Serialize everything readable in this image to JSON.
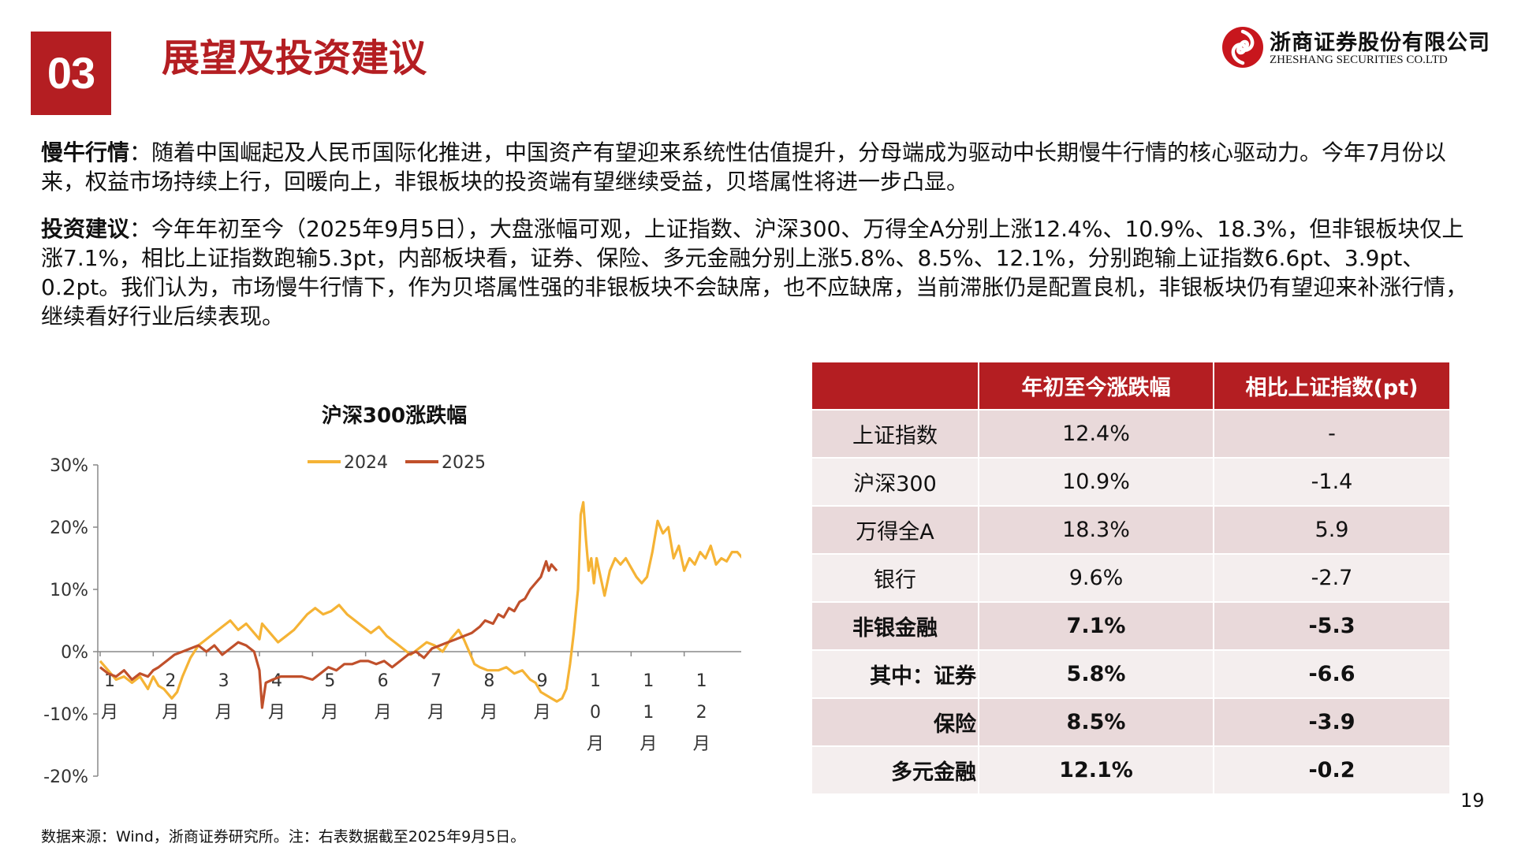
{
  "header": {
    "section_number": "03",
    "section_title": "展望及投资建议",
    "logo_cn": "浙商证券股份有限公司",
    "logo_en": "ZHESHANG SECURITIES CO.LTD",
    "brand_color": "#b41e22"
  },
  "paragraphs": [
    {
      "lead": "慢牛行情",
      "sep": "：",
      "text": "随着中国崛起及人民币国际化推进，中国资产有望迎来系统性估值提升，分母端成为驱动中长期慢牛行情的核心驱动力。今年7月份以来，权益市场持续上行，回暖向上，非银板块的投资端有望继续受益，贝塔属性将进一步凸显。"
    },
    {
      "lead": "投资建议",
      "sep": "：",
      "text": "今年年初至今（2025年9月5日），大盘涨幅可观，上证指数、沪深300、万得全A分别上涨12.4%、10.9%、18.3%，但非银板块仅上涨7.1%，相比上证指数跑输5.3pt，内部板块看，证券、保险、多元金融分别上涨5.8%、8.5%、12.1%，分别跑输上证指数6.6pt、3.9pt、0.2pt。我们认为，市场慢牛行情下，作为贝塔属性强的非银板块不会缺席，也不应缺席，当前滞胀仍是配置良机，非银板块仍有望迎来补涨行情，继续看好行业后续表现。"
    }
  ],
  "chart_data": {
    "type": "line",
    "title": "沪深300涨跌幅",
    "ylim": [
      -20,
      30
    ],
    "yticks": [
      "30%",
      "20%",
      "10%",
      "0%",
      "-10%",
      "-20%"
    ],
    "ytick_values": [
      30,
      20,
      10,
      0,
      -10,
      -20
    ],
    "xticks": [
      {
        "label": "1\n月",
        "at": 0
      },
      {
        "label": "2\n月",
        "at": 1
      },
      {
        "label": "3\n月",
        "at": 2
      },
      {
        "label": "4\n月",
        "at": 3
      },
      {
        "label": "5\n月",
        "at": 4
      },
      {
        "label": "6\n月",
        "at": 5
      },
      {
        "label": "7\n月",
        "at": 6
      },
      {
        "label": "8\n月",
        "at": 7
      },
      {
        "label": "9\n月",
        "at": 8
      },
      {
        "label": "1\n0\n月",
        "at": 9
      },
      {
        "label": "1\n1\n月",
        "at": 10
      },
      {
        "label": "1\n2\n月",
        "at": 11
      }
    ],
    "x_domain": [
      0,
      12
    ],
    "legend_position": "top-center",
    "grid": false,
    "series": [
      {
        "name": "2024",
        "color": "#f5b335",
        "points": [
          [
            0,
            -1.5
          ],
          [
            0.15,
            -3
          ],
          [
            0.3,
            -4.5
          ],
          [
            0.45,
            -4
          ],
          [
            0.6,
            -5
          ],
          [
            0.75,
            -4
          ],
          [
            0.9,
            -6
          ],
          [
            1.0,
            -4
          ],
          [
            1.1,
            -5.5
          ],
          [
            1.2,
            -6
          ],
          [
            1.35,
            -7.5
          ],
          [
            1.45,
            -6.5
          ],
          [
            1.55,
            -4
          ],
          [
            1.7,
            -1
          ],
          [
            1.85,
            1
          ],
          [
            2.0,
            2
          ],
          [
            2.15,
            3
          ],
          [
            2.3,
            4
          ],
          [
            2.45,
            5
          ],
          [
            2.6,
            3.5
          ],
          [
            2.75,
            4.5
          ],
          [
            2.9,
            3
          ],
          [
            3.0,
            2
          ],
          [
            3.05,
            4.5
          ],
          [
            3.2,
            3
          ],
          [
            3.35,
            1.5
          ],
          [
            3.5,
            2.5
          ],
          [
            3.65,
            3.5
          ],
          [
            3.8,
            5
          ],
          [
            3.9,
            6
          ],
          [
            4.05,
            7
          ],
          [
            4.2,
            6
          ],
          [
            4.35,
            6.5
          ],
          [
            4.5,
            7.5
          ],
          [
            4.65,
            6
          ],
          [
            4.8,
            5
          ],
          [
            4.95,
            4
          ],
          [
            5.1,
            3
          ],
          [
            5.25,
            4
          ],
          [
            5.4,
            2.5
          ],
          [
            5.55,
            1.5
          ],
          [
            5.7,
            0.5
          ],
          [
            5.85,
            -0.5
          ],
          [
            6.0,
            0.5
          ],
          [
            6.15,
            1.5
          ],
          [
            6.3,
            1
          ],
          [
            6.45,
            0
          ],
          [
            6.6,
            2
          ],
          [
            6.75,
            3.5
          ],
          [
            6.85,
            2
          ],
          [
            6.95,
            0
          ],
          [
            7.05,
            -2
          ],
          [
            7.15,
            -2.5
          ],
          [
            7.3,
            -3
          ],
          [
            7.5,
            -3
          ],
          [
            7.65,
            -2.5
          ],
          [
            7.8,
            -3.5
          ],
          [
            7.95,
            -3
          ],
          [
            8.1,
            -4.5
          ],
          [
            8.2,
            -5
          ],
          [
            8.3,
            -6.5
          ],
          [
            8.4,
            -7
          ],
          [
            8.5,
            -7.5
          ],
          [
            8.6,
            -8
          ],
          [
            8.7,
            -7.5
          ],
          [
            8.78,
            -6
          ],
          [
            8.85,
            -2
          ],
          [
            8.92,
            3
          ],
          [
            9.0,
            10
          ],
          [
            9.05,
            22
          ],
          [
            9.1,
            24
          ],
          [
            9.15,
            18
          ],
          [
            9.2,
            13
          ],
          [
            9.25,
            15
          ],
          [
            9.3,
            11
          ],
          [
            9.35,
            15
          ],
          [
            9.4,
            13
          ],
          [
            9.5,
            9
          ],
          [
            9.6,
            13
          ],
          [
            9.7,
            15
          ],
          [
            9.8,
            14
          ],
          [
            9.9,
            15
          ],
          [
            10.0,
            13.5
          ],
          [
            10.1,
            12
          ],
          [
            10.2,
            11
          ],
          [
            10.3,
            12
          ],
          [
            10.4,
            16
          ],
          [
            10.5,
            21
          ],
          [
            10.6,
            19
          ],
          [
            10.7,
            20
          ],
          [
            10.8,
            15
          ],
          [
            10.9,
            17
          ],
          [
            11.0,
            13
          ],
          [
            11.1,
            15
          ],
          [
            11.2,
            14
          ],
          [
            11.3,
            16
          ],
          [
            11.4,
            15
          ],
          [
            11.5,
            17
          ],
          [
            11.6,
            14
          ],
          [
            11.7,
            15
          ],
          [
            11.8,
            14.5
          ],
          [
            11.9,
            16
          ],
          [
            12.0,
            16
          ],
          [
            12.1,
            15
          ]
        ]
      },
      {
        "name": "2025",
        "color": "#c0502b",
        "points": [
          [
            0,
            -2.5
          ],
          [
            0.15,
            -3.5
          ],
          [
            0.3,
            -4
          ],
          [
            0.45,
            -3
          ],
          [
            0.6,
            -4.5
          ],
          [
            0.75,
            -3.5
          ],
          [
            0.9,
            -4
          ],
          [
            1.0,
            -3
          ],
          [
            1.1,
            -2.5
          ],
          [
            1.25,
            -1.5
          ],
          [
            1.4,
            -0.5
          ],
          [
            1.55,
            0
          ],
          [
            1.7,
            0.5
          ],
          [
            1.85,
            1
          ],
          [
            2.0,
            0
          ],
          [
            2.15,
            1
          ],
          [
            2.3,
            -0.5
          ],
          [
            2.45,
            0.5
          ],
          [
            2.6,
            1.5
          ],
          [
            2.75,
            1
          ],
          [
            2.9,
            0
          ],
          [
            3.0,
            -3
          ],
          [
            3.05,
            -9
          ],
          [
            3.12,
            -5
          ],
          [
            3.25,
            -4.5
          ],
          [
            3.4,
            -4
          ],
          [
            3.6,
            -4
          ],
          [
            3.8,
            -4
          ],
          [
            4.0,
            -4.5
          ],
          [
            4.15,
            -3.5
          ],
          [
            4.3,
            -2.5
          ],
          [
            4.45,
            -3
          ],
          [
            4.6,
            -2
          ],
          [
            4.75,
            -2
          ],
          [
            4.9,
            -1.5
          ],
          [
            5.05,
            -1.5
          ],
          [
            5.2,
            -2
          ],
          [
            5.35,
            -1.5
          ],
          [
            5.5,
            -2.5
          ],
          [
            5.65,
            -1.5
          ],
          [
            5.8,
            -0.5
          ],
          [
            5.95,
            0
          ],
          [
            6.1,
            -1
          ],
          [
            6.25,
            0.5
          ],
          [
            6.4,
            1
          ],
          [
            6.55,
            1.5
          ],
          [
            6.7,
            2
          ],
          [
            6.85,
            2.5
          ],
          [
            7.0,
            3
          ],
          [
            7.15,
            4
          ],
          [
            7.25,
            5
          ],
          [
            7.4,
            4.5
          ],
          [
            7.5,
            6
          ],
          [
            7.6,
            5.5
          ],
          [
            7.7,
            7
          ],
          [
            7.8,
            6.5
          ],
          [
            7.9,
            8
          ],
          [
            8.0,
            8.5
          ],
          [
            8.1,
            10
          ],
          [
            8.2,
            11
          ],
          [
            8.3,
            12
          ],
          [
            8.4,
            14.5
          ],
          [
            8.45,
            13
          ],
          [
            8.5,
            14
          ],
          [
            8.6,
            13
          ]
        ]
      }
    ]
  },
  "table": {
    "headers": [
      "",
      "年初至今涨跌幅",
      "相比上证指数(pt)"
    ],
    "rows": [
      {
        "name": "上证指数",
        "ytd": "12.4%",
        "vs": "-",
        "bold": false,
        "indent": false
      },
      {
        "name": "沪深300",
        "ytd": "10.9%",
        "vs": "-1.4",
        "bold": false,
        "indent": false
      },
      {
        "name": "万得全A",
        "ytd": "18.3%",
        "vs": "5.9",
        "bold": false,
        "indent": false
      },
      {
        "name": "银行",
        "ytd": "9.6%",
        "vs": "-2.7",
        "bold": false,
        "indent": false
      },
      {
        "name": "非银金融",
        "ytd": "7.1%",
        "vs": "-5.3",
        "bold": true,
        "indent": false
      },
      {
        "name": "其中：证券",
        "ytd": "5.8%",
        "vs": "-6.6",
        "bold": true,
        "indent": true
      },
      {
        "name": "保险",
        "ytd": "8.5%",
        "vs": "-3.9",
        "bold": true,
        "indent": true
      },
      {
        "name": "多元金融",
        "ytd": "12.1%",
        "vs": "-0.2",
        "bold": true,
        "indent": true
      }
    ]
  },
  "footer": {
    "source": "数据来源：Wind，浙商证券研究所。注：右表数据截至2025年9月5日。",
    "page_number": "19"
  }
}
